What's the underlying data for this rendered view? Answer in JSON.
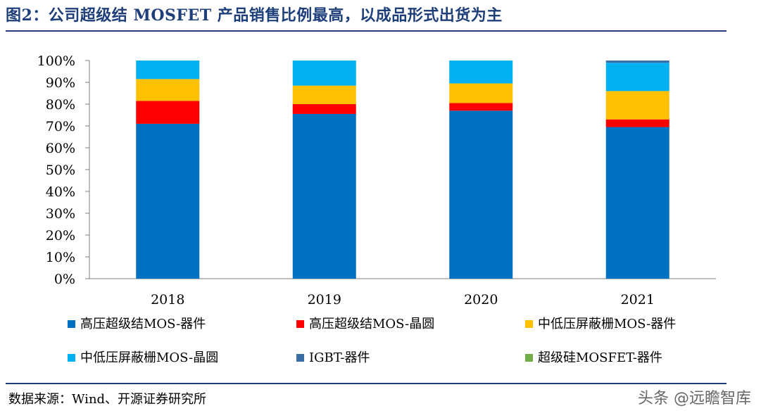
{
  "header": {
    "title": "图2：公司超级结 MOSFET 产品销售比例最高，以成品形式出货为主"
  },
  "footer": {
    "source": "数据来源：Wind、开源证券研究所",
    "watermark": "头条 @远瞻智库"
  },
  "chart_data": {
    "type": "bar",
    "stacked": true,
    "categories": [
      "2018",
      "2019",
      "2020",
      "2021"
    ],
    "y_ticks": [
      "0%",
      "10%",
      "20%",
      "30%",
      "40%",
      "50%",
      "60%",
      "70%",
      "80%",
      "90%",
      "100%"
    ],
    "ylim": [
      0,
      100
    ],
    "legend_position": "bottom",
    "series": [
      {
        "name": "高压超级结MOS-器件",
        "color": "#0070c0",
        "values": [
          71,
          75.5,
          77,
          69.5
        ]
      },
      {
        "name": "高压超级结MOS-晶圆",
        "color": "#ff0000",
        "values": [
          10.5,
          4.5,
          3.5,
          3.5
        ]
      },
      {
        "name": "中低压屏蔽栅MOS-器件",
        "color": "#ffc000",
        "values": [
          10,
          8.5,
          9,
          13
        ]
      },
      {
        "name": "中低压屏蔽栅MOS-晶圆",
        "color": "#00b0f0",
        "values": [
          8.5,
          11.5,
          10.5,
          13
        ]
      },
      {
        "name": "IGBT-器件",
        "color": "#3a6ea5",
        "values": [
          0,
          0,
          0,
          1
        ]
      },
      {
        "name": "超级硅MOSFET-器件",
        "color": "#70ad47",
        "values": [
          0,
          0,
          0,
          0
        ]
      }
    ]
  }
}
